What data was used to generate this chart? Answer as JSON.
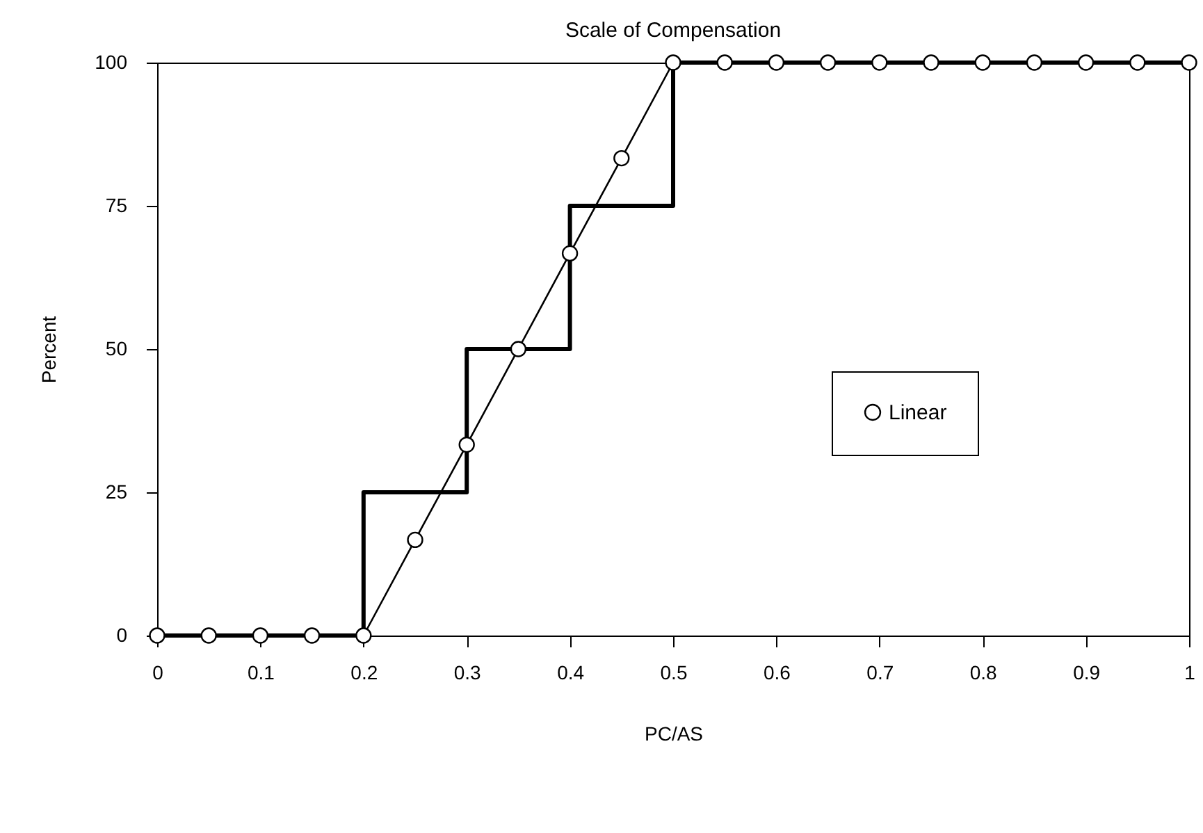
{
  "chart_data": {
    "type": "line",
    "title": "Scale of Compensation",
    "xlabel": "PC/AS",
    "ylabel": "Percent",
    "xlim": [
      0,
      1
    ],
    "xticks": [
      0,
      0.1,
      0.2,
      0.3,
      0.4,
      0.5,
      0.6,
      0.7,
      0.8,
      0.9,
      1
    ],
    "ylim": [
      0,
      100
    ],
    "yticks": [
      0,
      25,
      50,
      75,
      100
    ],
    "grid": false,
    "legend": "right",
    "series": [
      {
        "type": "step",
        "color": "#000000",
        "x": [
          0,
          0.2,
          0.3,
          0.4,
          0.5,
          1
        ],
        "values": [
          0,
          25,
          50,
          75,
          100,
          100
        ]
      },
      {
        "type": "line",
        "name": "Linear",
        "color": "#000000",
        "marker": "circle",
        "x": [
          0,
          0.05,
          0.1,
          0.15,
          0.2,
          0.25,
          0.3,
          0.35,
          0.4,
          0.45,
          0.5,
          0.55,
          0.6,
          0.65,
          0.7,
          0.75,
          0.8,
          0.85,
          0.9,
          0.95,
          1
        ],
        "values": [
          0,
          0,
          0,
          0,
          0,
          16.7,
          33.3,
          50,
          66.7,
          83.3,
          100,
          100,
          100,
          100,
          100,
          100,
          100,
          100,
          100,
          100,
          100
        ]
      }
    ]
  }
}
